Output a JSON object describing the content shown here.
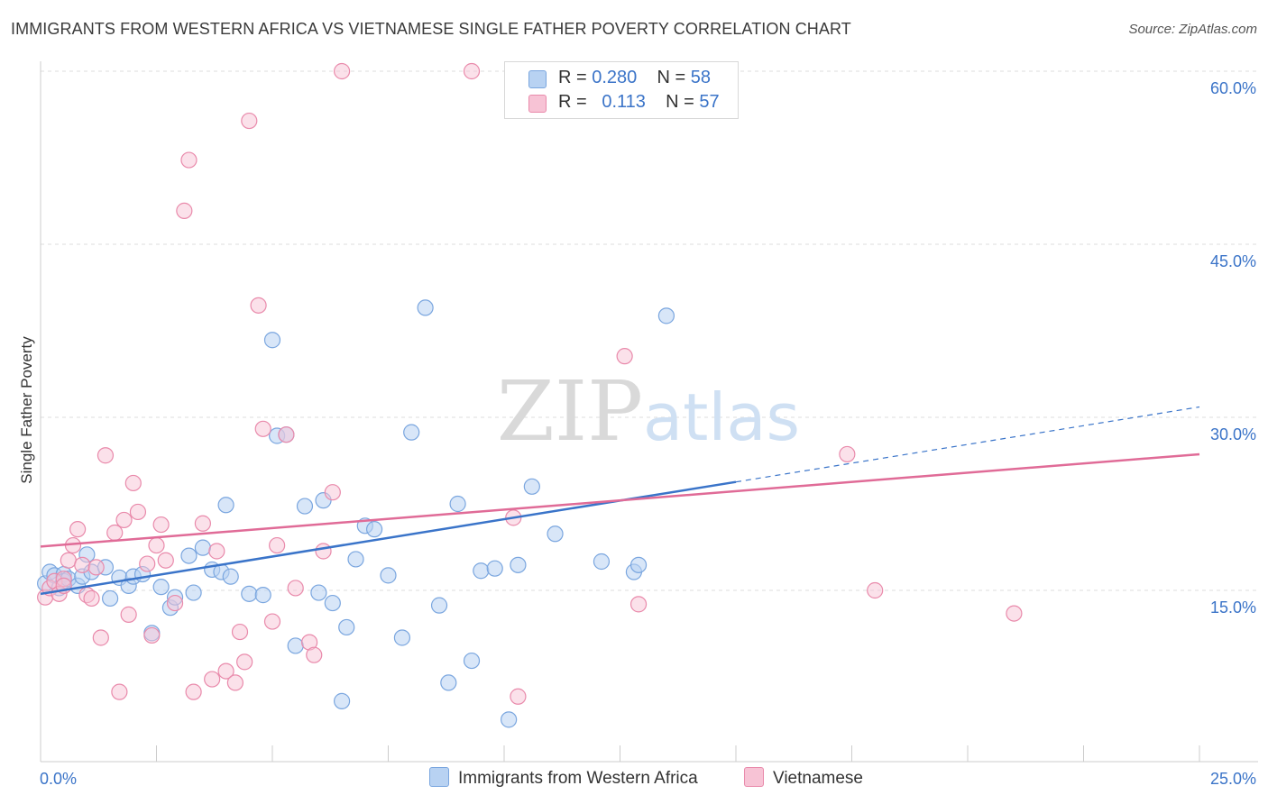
{
  "title": "IMMIGRANTS FROM WESTERN AFRICA VS VIETNAMESE SINGLE FATHER POVERTY CORRELATION CHART",
  "source": "Source: ZipAtlas.com",
  "watermark": {
    "zip": "ZIP",
    "atlas": "atlas"
  },
  "legend_top": {
    "rows": [
      {
        "r_label": "R =",
        "r_value": "0.280",
        "n_label": "N =",
        "n_value": "58"
      },
      {
        "r_label": "R =",
        "r_value": "0.113",
        "n_label": "N =",
        "n_value": "57"
      }
    ]
  },
  "legend_bottom": {
    "series1": "Immigrants from Western Africa",
    "series2": "Vietnamese"
  },
  "colors": {
    "series1_fill": "#b8d2f2",
    "series1_stroke": "#7aa6df",
    "series1_line": "#3a74c9",
    "series2_fill": "#f7c3d5",
    "series2_stroke": "#e98aab",
    "series2_line": "#e06b97",
    "axis_text": "#3b74c8",
    "grid": "#dddddd"
  },
  "chart_data": {
    "type": "scatter",
    "title": "IMMIGRANTS FROM WESTERN AFRICA VS VIETNAMESE SINGLE FATHER POVERTY CORRELATION CHART",
    "xlabel": "",
    "ylabel": "Single Father Poverty",
    "xlim": [
      0,
      25
    ],
    "ylim": [
      0,
      60
    ],
    "x_tick_labels": [
      "0.0%",
      "25.0%"
    ],
    "y_ticks": [
      15,
      30,
      45,
      60
    ],
    "y_tick_labels": [
      "15.0%",
      "30.0%",
      "45.0%",
      "60.0%"
    ],
    "series": [
      {
        "name": "Immigrants from Western Africa",
        "r": 0.28,
        "n": 58,
        "trend": {
          "x0": 0,
          "y0": 14.7,
          "x1": 15,
          "y1": 24.4,
          "dash_x1": 25,
          "dash_y1": 30.9
        },
        "points": [
          [
            0.1,
            15.6
          ],
          [
            0.2,
            16.6
          ],
          [
            0.3,
            16.3
          ],
          [
            0.4,
            15.2
          ],
          [
            0.5,
            16.4
          ],
          [
            0.5,
            15.8
          ],
          [
            0.6,
            16.0
          ],
          [
            0.8,
            15.4
          ],
          [
            0.9,
            16.2
          ],
          [
            1.0,
            18.1
          ],
          [
            1.1,
            16.6
          ],
          [
            1.4,
            17.0
          ],
          [
            1.5,
            14.3
          ],
          [
            1.7,
            16.1
          ],
          [
            1.9,
            15.4
          ],
          [
            2.0,
            16.2
          ],
          [
            2.2,
            16.4
          ],
          [
            2.4,
            11.3
          ],
          [
            2.6,
            15.3
          ],
          [
            2.8,
            13.5
          ],
          [
            2.9,
            14.4
          ],
          [
            3.2,
            18.0
          ],
          [
            3.3,
            14.8
          ],
          [
            3.5,
            18.7
          ],
          [
            3.7,
            16.8
          ],
          [
            3.9,
            16.6
          ],
          [
            4.0,
            22.4
          ],
          [
            4.1,
            16.2
          ],
          [
            4.5,
            14.7
          ],
          [
            4.8,
            14.6
          ],
          [
            5.0,
            36.7
          ],
          [
            5.1,
            28.4
          ],
          [
            5.3,
            28.5
          ],
          [
            5.5,
            10.2
          ],
          [
            5.7,
            22.3
          ],
          [
            6.0,
            14.8
          ],
          [
            6.1,
            22.8
          ],
          [
            6.3,
            13.9
          ],
          [
            6.5,
            5.4
          ],
          [
            6.6,
            11.8
          ],
          [
            6.8,
            17.7
          ],
          [
            7.0,
            20.6
          ],
          [
            7.2,
            20.3
          ],
          [
            7.5,
            16.3
          ],
          [
            7.8,
            10.9
          ],
          [
            8.0,
            28.7
          ],
          [
            8.3,
            39.5
          ],
          [
            8.6,
            13.7
          ],
          [
            8.8,
            7.0
          ],
          [
            9.0,
            22.5
          ],
          [
            9.3,
            8.9
          ],
          [
            9.5,
            16.7
          ],
          [
            9.8,
            16.9
          ],
          [
            10.1,
            3.8
          ],
          [
            10.3,
            17.2
          ],
          [
            10.6,
            24.0
          ],
          [
            11.1,
            19.9
          ],
          [
            12.1,
            17.5
          ]
        ],
        "points_extra": [
          [
            12.8,
            16.6
          ],
          [
            12.9,
            17.2
          ],
          [
            13.5,
            38.8
          ]
        ]
      },
      {
        "name": "Vietnamese",
        "r": 0.113,
        "n": 57,
        "trend": {
          "x0": 0,
          "y0": 18.8,
          "x1": 25,
          "y1": 26.8
        },
        "points": [
          [
            0.1,
            14.4
          ],
          [
            0.2,
            15.2
          ],
          [
            0.3,
            15.8
          ],
          [
            0.4,
            14.7
          ],
          [
            0.5,
            16.0
          ],
          [
            0.5,
            15.4
          ],
          [
            0.6,
            17.6
          ],
          [
            0.7,
            18.9
          ],
          [
            0.8,
            20.3
          ],
          [
            0.9,
            17.2
          ],
          [
            1.0,
            14.6
          ],
          [
            1.1,
            14.3
          ],
          [
            1.2,
            17.0
          ],
          [
            1.3,
            10.9
          ],
          [
            1.4,
            26.7
          ],
          [
            1.6,
            20.0
          ],
          [
            1.7,
            6.2
          ],
          [
            1.8,
            21.1
          ],
          [
            1.9,
            12.9
          ],
          [
            2.0,
            24.3
          ],
          [
            2.1,
            21.8
          ],
          [
            2.3,
            17.3
          ],
          [
            2.4,
            11.1
          ],
          [
            2.5,
            18.9
          ],
          [
            2.6,
            20.7
          ],
          [
            2.7,
            17.6
          ],
          [
            2.9,
            13.9
          ],
          [
            3.1,
            47.9
          ],
          [
            3.2,
            52.3
          ],
          [
            3.3,
            6.2
          ],
          [
            3.5,
            20.8
          ],
          [
            3.7,
            7.3
          ],
          [
            3.8,
            18.4
          ],
          [
            4.0,
            8.0
          ],
          [
            4.2,
            7.0
          ],
          [
            4.3,
            11.4
          ],
          [
            4.4,
            8.8
          ],
          [
            4.5,
            55.7
          ],
          [
            4.7,
            39.7
          ],
          [
            4.8,
            29.0
          ],
          [
            5.0,
            12.3
          ],
          [
            5.1,
            18.9
          ],
          [
            5.3,
            28.5
          ],
          [
            5.5,
            15.2
          ],
          [
            5.8,
            10.5
          ],
          [
            5.9,
            9.4
          ],
          [
            6.1,
            18.4
          ],
          [
            6.3,
            23.5
          ],
          [
            6.5,
            60.0
          ],
          [
            9.3,
            60.0
          ],
          [
            10.2,
            21.3
          ],
          [
            10.3,
            5.8
          ],
          [
            12.6,
            35.3
          ],
          [
            12.9,
            13.8
          ],
          [
            17.4,
            26.8
          ],
          [
            18.0,
            15.0
          ],
          [
            21.0,
            13.0
          ]
        ]
      }
    ]
  }
}
